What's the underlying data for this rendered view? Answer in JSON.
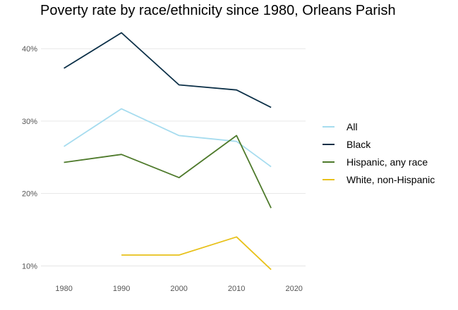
{
  "chart_data": {
    "type": "line",
    "title": "Poverty rate by race/ethnicity since 1980, Orleans Parish",
    "xlabel": "",
    "ylabel": "",
    "xlim": [
      1976,
      2022
    ],
    "ylim": [
      0.08,
      0.44
    ],
    "x_ticks": [
      1980,
      1990,
      2000,
      2010,
      2020
    ],
    "x_tick_labels": [
      "1980",
      "1990",
      "2000",
      "2010",
      "2020"
    ],
    "y_ticks": [
      0.1,
      0.2,
      0.3,
      0.4
    ],
    "y_tick_labels": [
      "10%",
      "20%",
      "30%",
      "40%"
    ],
    "grid": "horizontal",
    "legend_position": "right",
    "series": [
      {
        "name": "All",
        "color": "#a6dcef",
        "points": [
          [
            1980,
            0.265
          ],
          [
            1990,
            0.317
          ],
          [
            2000,
            0.28
          ],
          [
            2010,
            0.272
          ],
          [
            2016,
            0.237
          ]
        ]
      },
      {
        "name": "Black",
        "color": "#0b2f47",
        "points": [
          [
            1980,
            0.373
          ],
          [
            1990,
            0.422
          ],
          [
            2000,
            0.35
          ],
          [
            2010,
            0.343
          ],
          [
            2016,
            0.319
          ]
        ]
      },
      {
        "name": "Hispanic, any race",
        "color": "#4e7a2b",
        "points": [
          [
            1980,
            0.243
          ],
          [
            1990,
            0.254
          ],
          [
            2000,
            0.222
          ],
          [
            2010,
            0.28
          ],
          [
            2016,
            0.18
          ]
        ]
      },
      {
        "name": "White, non-Hispanic",
        "color": "#e8c11a",
        "points": [
          [
            1990,
            0.115
          ],
          [
            2000,
            0.115
          ],
          [
            2010,
            0.14
          ],
          [
            2016,
            0.095
          ]
        ]
      }
    ]
  }
}
